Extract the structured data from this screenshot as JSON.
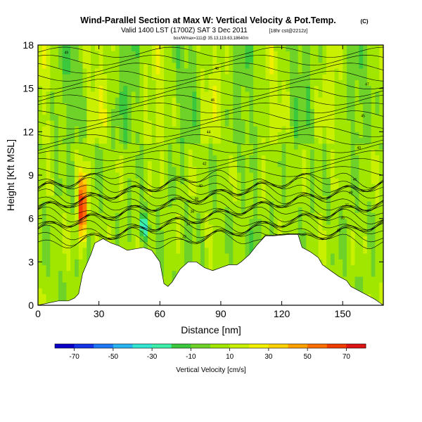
{
  "chart_data": {
    "type": "heatmap",
    "title": "Wind-Parallel Section at Max W: Vertical Velocity & Pot.Temp.",
    "title_units": "(C)",
    "subtitle": "Valid 1400 LST (1700Z) SAT 3 Dec 2011",
    "subtitle_run": "[18hr cst@2212z]",
    "subtitle_small": "box/Wmax=111@ 35.13,119.63,18640m",
    "xlabel": "Distance [nm]",
    "ylabel": "Height [Kft MSL]",
    "x_ticks": [
      0,
      30,
      60,
      90,
      120,
      150
    ],
    "y_ticks": [
      0,
      3,
      6,
      9,
      12,
      15,
      18
    ],
    "xlim": [
      0,
      170
    ],
    "ylim": [
      0,
      18
    ],
    "terrain_kft": [
      [
        0,
        0.0
      ],
      [
        10,
        0.3
      ],
      [
        15,
        0.3
      ],
      [
        18,
        0.5
      ],
      [
        20,
        0.8
      ],
      [
        22,
        2.2
      ],
      [
        26,
        3.5
      ],
      [
        28,
        4.3
      ],
      [
        32,
        4.6
      ],
      [
        36,
        4.3
      ],
      [
        40,
        4.1
      ],
      [
        44,
        3.8
      ],
      [
        48,
        3.9
      ],
      [
        52,
        4.0
      ],
      [
        56,
        3.8
      ],
      [
        60,
        3.0
      ],
      [
        62,
        1.5
      ],
      [
        64,
        1.3
      ],
      [
        66,
        1.6
      ],
      [
        70,
        2.5
      ],
      [
        74,
        3.0
      ],
      [
        78,
        3.0
      ],
      [
        82,
        2.6
      ],
      [
        86,
        2.4
      ],
      [
        90,
        2.6
      ],
      [
        94,
        2.8
      ],
      [
        98,
        2.8
      ],
      [
        100,
        3.0
      ],
      [
        104,
        3.5
      ],
      [
        108,
        4.2
      ],
      [
        112,
        4.8
      ],
      [
        116,
        4.8
      ],
      [
        124,
        4.9
      ],
      [
        128,
        4.9
      ],
      [
        130,
        4.0
      ],
      [
        134,
        3.7
      ],
      [
        138,
        3.3
      ],
      [
        140,
        2.8
      ],
      [
        144,
        2.4
      ],
      [
        148,
        2.0
      ],
      [
        152,
        1.7
      ],
      [
        154,
        1.3
      ],
      [
        158,
        1.0
      ],
      [
        162,
        0.7
      ],
      [
        166,
        0.4
      ],
      [
        168,
        0.2
      ]
    ],
    "isentropes_label": "Potential Temperature (C)",
    "theta_labels": [
      "49",
      "48",
      "47",
      "46",
      "45",
      "44",
      "43",
      "42",
      "41",
      "40",
      "39",
      "38",
      "37",
      "36",
      "35",
      "34",
      "33",
      "32",
      "31",
      "30",
      "29",
      "28",
      "27"
    ],
    "colorbar": {
      "label": "Vertical Velocity [cm/s]",
      "tick_labels": [
        "-70",
        "-50",
        "-30",
        "-10",
        "10",
        "30",
        "50",
        "70"
      ],
      "range": [
        -80,
        80
      ],
      "colors": [
        "#0a00c8",
        "#1432e6",
        "#1e78f5",
        "#28b4f0",
        "#32e6d2",
        "#3cf0aa",
        "#3cc83c",
        "#6ed228",
        "#a0e600",
        "#c8f000",
        "#f0f000",
        "#ffd200",
        "#ffa000",
        "#ff6e00",
        "#f03c00",
        "#dc1414"
      ]
    },
    "updraft_cores": [
      {
        "x_nm": 22,
        "base_kft": 4.5,
        "top_kft": 9.0,
        "w_cms": 70
      },
      {
        "x_nm": 52,
        "base_kft": 4.5,
        "top_kft": 6.5,
        "w_cms": -40
      },
      {
        "x_nm": 105,
        "base_kft": 3.0,
        "top_kft": 6.0,
        "w_cms": -30
      }
    ]
  }
}
